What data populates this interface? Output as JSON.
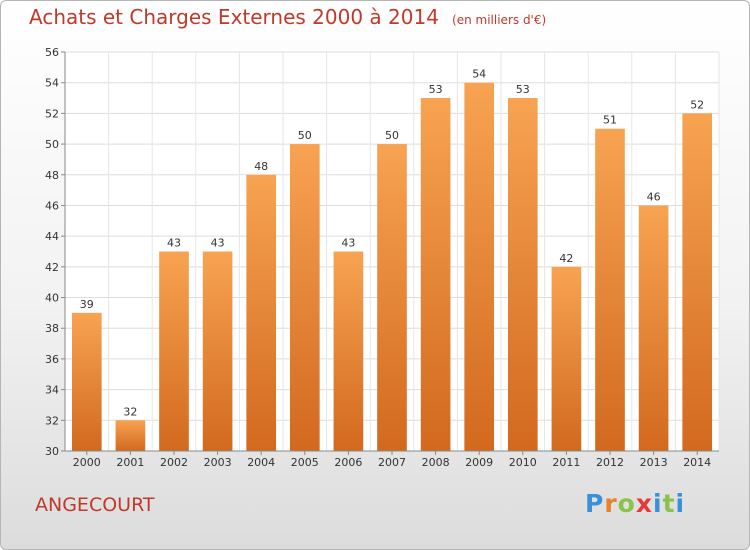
{
  "chart_data": {
    "type": "bar",
    "title": "Achats et Charges Externes 2000 à 2014",
    "subtitle": "(en milliers d'€)",
    "categories": [
      "2000",
      "2001",
      "2002",
      "2003",
      "2004",
      "2005",
      "2006",
      "2007",
      "2008",
      "2009",
      "2010",
      "2011",
      "2012",
      "2013",
      "2014"
    ],
    "values": [
      39,
      32,
      43,
      43,
      48,
      50,
      43,
      50,
      53,
      54,
      53,
      42,
      51,
      46,
      52
    ],
    "ylim": [
      30,
      56
    ],
    "yticks": [
      30,
      32,
      34,
      36,
      38,
      40,
      42,
      44,
      46,
      48,
      50,
      52,
      54,
      56
    ],
    "grid": true,
    "bar_color_top": "#f7a352",
    "bar_color_bottom": "#d2691e"
  },
  "footer": {
    "commune": "ANGECOURT",
    "logo_letters": [
      "P",
      "r",
      "o",
      "x",
      "i",
      "t",
      "i"
    ],
    "logo_colors": [
      "#3a8fd9",
      "#e8812a",
      "#8bc34a",
      "#e53935",
      "#3a8fd9",
      "#8bc34a",
      "#3a8fd9"
    ]
  }
}
